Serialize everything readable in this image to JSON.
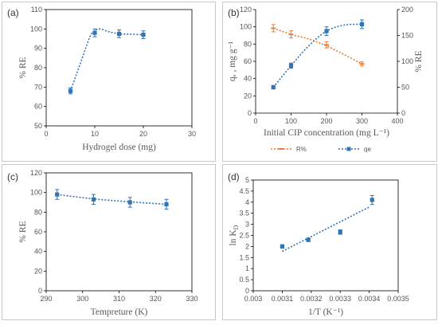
{
  "colors": {
    "blue": "#2e75b6",
    "orange": "#ed7d31"
  },
  "chart_data": [
    {
      "panel_label": "(a)",
      "type": "scatter",
      "xlabel": "Hydrogel dose (mg)",
      "ylabel": "% RE",
      "xlim": [
        0,
        30
      ],
      "ylim": [
        50,
        110
      ],
      "xticks": [
        0,
        10,
        20,
        30
      ],
      "yticks": [
        50,
        60,
        70,
        80,
        90,
        100,
        110
      ],
      "series": [
        {
          "x": [
            5,
            10,
            15,
            20
          ],
          "y": [
            68,
            98,
            97.5,
            97
          ],
          "err": [
            1.5,
            2.0,
            2.0,
            2.0
          ]
        }
      ],
      "trendline": {
        "x": [
          5,
          7,
          9,
          10,
          11,
          13,
          15,
          17,
          20
        ],
        "y": [
          68,
          82,
          96,
          99,
          100,
          98.5,
          97.5,
          97.3,
          97
        ]
      }
    },
    {
      "panel_label": "(b)",
      "type": "scatter",
      "xlabel": "Initial CIP concentration (mg L⁻¹)",
      "ylabel": "qₑ , mg g⁻¹",
      "y2label": "% RE",
      "xlim": [
        0,
        400
      ],
      "ylim": [
        0,
        120
      ],
      "y2lim": [
        0,
        200
      ],
      "xticks": [
        0,
        100,
        200,
        300,
        400
      ],
      "yticks": [
        0,
        20,
        40,
        60,
        80,
        100,
        120
      ],
      "y2ticks": [
        0,
        50,
        100,
        150,
        200
      ],
      "series": [
        {
          "name": "R%",
          "axis": "y2",
          "x": [
            50,
            100,
            200,
            300
          ],
          "y": [
            164,
            152,
            132,
            95
          ],
          "err": [
            7,
            7,
            6,
            4
          ]
        },
        {
          "name": "qe",
          "axis": "y",
          "x": [
            50,
            100,
            200,
            300
          ],
          "y": [
            30,
            55,
            95,
            103
          ],
          "err": [
            2,
            3,
            5,
            5
          ]
        }
      ],
      "trendlines": [
        {
          "axis": "y2",
          "x": [
            50,
            100,
            150,
            200,
            250,
            300
          ],
          "y": [
            164,
            152,
            143,
            130,
            113,
            95
          ]
        },
        {
          "axis": "y",
          "x": [
            50,
            100,
            150,
            200,
            250,
            300
          ],
          "y": [
            30,
            55,
            78,
            95,
            102,
            103
          ]
        }
      ],
      "legend": [
        {
          "name": "R%"
        },
        {
          "name": "qe"
        }
      ]
    },
    {
      "panel_label": "(c)",
      "type": "scatter",
      "xlabel": "Tempreture (K)",
      "ylabel": "% RE",
      "xlim": [
        290,
        330
      ],
      "ylim": [
        0,
        120
      ],
      "xticks": [
        290,
        300,
        310,
        320,
        330
      ],
      "yticks": [
        0,
        20,
        40,
        60,
        80,
        100,
        120
      ],
      "series": [
        {
          "x": [
            293,
            303,
            313,
            323
          ],
          "y": [
            98,
            93,
            90,
            88
          ],
          "err": [
            5,
            5,
            5,
            5
          ]
        }
      ],
      "trendline": {
        "x": [
          293,
          303,
          313,
          323
        ],
        "y": [
          98,
          93.5,
          90.5,
          88
        ]
      }
    },
    {
      "panel_label": "(d)",
      "type": "scatter",
      "xlabel": "1/T (K⁻¹)",
      "ylabel": "ln K",
      "ylabel_sub": "D",
      "xlim": [
        0.003,
        0.0035
      ],
      "ylim": [
        0,
        5
      ],
      "xticks": [
        "0.003",
        "0.0031",
        "0.0032",
        "0.0033",
        "0.0034",
        "0.0035"
      ],
      "yticks": [
        "0",
        "0.5",
        "1",
        "1.5",
        "2",
        "2.5",
        "3",
        "3.5",
        "4",
        "4.5",
        "5"
      ],
      "series": [
        {
          "x": [
            0.0031,
            0.00319,
            0.0033,
            0.00341
          ],
          "y": [
            2.0,
            2.3,
            2.65,
            4.1
          ],
          "err": [
            0.08,
            0.08,
            0.1,
            0.2
          ]
        }
      ],
      "trendline": {
        "x": [
          0.0031,
          0.0034
        ],
        "y": [
          1.78,
          3.78
        ]
      }
    }
  ]
}
